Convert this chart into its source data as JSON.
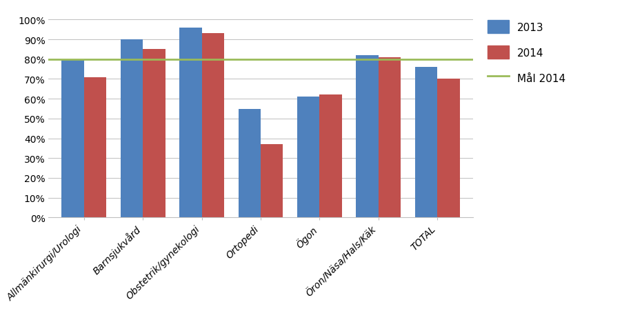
{
  "categories": [
    "Allmänkirurgi/Urologi",
    "Barnsjukvård",
    "Obstetrik/gynekologi",
    "Ortopedi",
    "Ögon",
    "Öron/Näsa/Hals/Käk",
    "TOTAL"
  ],
  "values_2013": [
    0.8,
    0.9,
    0.96,
    0.55,
    0.61,
    0.82,
    0.76
  ],
  "values_2014": [
    0.71,
    0.85,
    0.93,
    0.37,
    0.62,
    0.81,
    0.7
  ],
  "mal_2014": 0.8,
  "color_2013": "#4F81BD",
  "color_2014": "#C0504D",
  "color_mal": "#9BBB59",
  "legend_labels": [
    "2013",
    "2014",
    "Mål 2014"
  ],
  "yticks": [
    0.0,
    0.1,
    0.2,
    0.3,
    0.4,
    0.5,
    0.6,
    0.7,
    0.8,
    0.9,
    1.0
  ],
  "ytick_labels": [
    "0%",
    "10%",
    "20%",
    "30%",
    "40%",
    "50%",
    "60%",
    "70%",
    "80%",
    "90%",
    "100%"
  ],
  "ylim": [
    0,
    1.05
  ],
  "bar_width": 0.38,
  "background_color": "#FFFFFF",
  "figsize": [
    9.02,
    4.52
  ],
  "dpi": 100
}
